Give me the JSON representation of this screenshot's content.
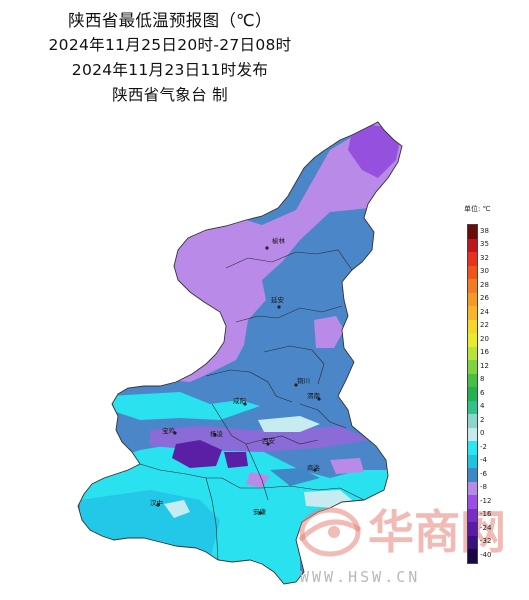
{
  "title": {
    "line1": "陕西省最低温预报图（℃）",
    "line2": "2024年11月25日20时-27日08时",
    "line3": "2024年11月23日11时发布",
    "line4": "陕西省气象台  制"
  },
  "cities": [
    {
      "name": "榆林"
    },
    {
      "name": "延安"
    },
    {
      "name": "铜川"
    },
    {
      "name": "咸阳"
    },
    {
      "name": "渭南"
    },
    {
      "name": "宝鸡"
    },
    {
      "name": "杨凌"
    },
    {
      "name": "西安"
    },
    {
      "name": "商洛"
    },
    {
      "name": "汉中"
    },
    {
      "name": "安康"
    }
  ],
  "legend": {
    "unit": "单位: ℃",
    "items": [
      {
        "label": "38",
        "color": "#6e0a0a"
      },
      {
        "label": "35",
        "color": "#c0161b"
      },
      {
        "label": "32",
        "color": "#e8301a"
      },
      {
        "label": "30",
        "color": "#f0541a"
      },
      {
        "label": "28",
        "color": "#f37c22"
      },
      {
        "label": "26",
        "color": "#f79a25"
      },
      {
        "label": "24",
        "color": "#f9b52a"
      },
      {
        "label": "22",
        "color": "#f7d62c"
      },
      {
        "label": "20",
        "color": "#e6ec2a"
      },
      {
        "label": "16",
        "color": "#b8e33a"
      },
      {
        "label": "12",
        "color": "#7fd33e"
      },
      {
        "label": "8",
        "color": "#45c044"
      },
      {
        "label": "6",
        "color": "#22b051"
      },
      {
        "label": "4",
        "color": "#2fc28b"
      },
      {
        "label": "2",
        "color": "#8bd6c9"
      },
      {
        "label": "0",
        "color": "#c6e8ef"
      },
      {
        "label": "-2",
        "color": "#29e6f0"
      },
      {
        "label": "-4",
        "color": "#1ec3e0"
      },
      {
        "label": "-6",
        "color": "#3f87c6"
      },
      {
        "label": "-8",
        "color": "#b88ae8"
      },
      {
        "label": "-12",
        "color": "#9a4fe6"
      },
      {
        "label": "-16",
        "color": "#7a2cc9"
      },
      {
        "label": "-24",
        "color": "#5b19a8"
      },
      {
        "label": "-32",
        "color": "#3b0f80"
      },
      {
        "label": "-40",
        "color": "#1a0645"
      }
    ]
  },
  "watermark": {
    "brand": "华商网",
    "url": "WWW.HSW.CN"
  }
}
